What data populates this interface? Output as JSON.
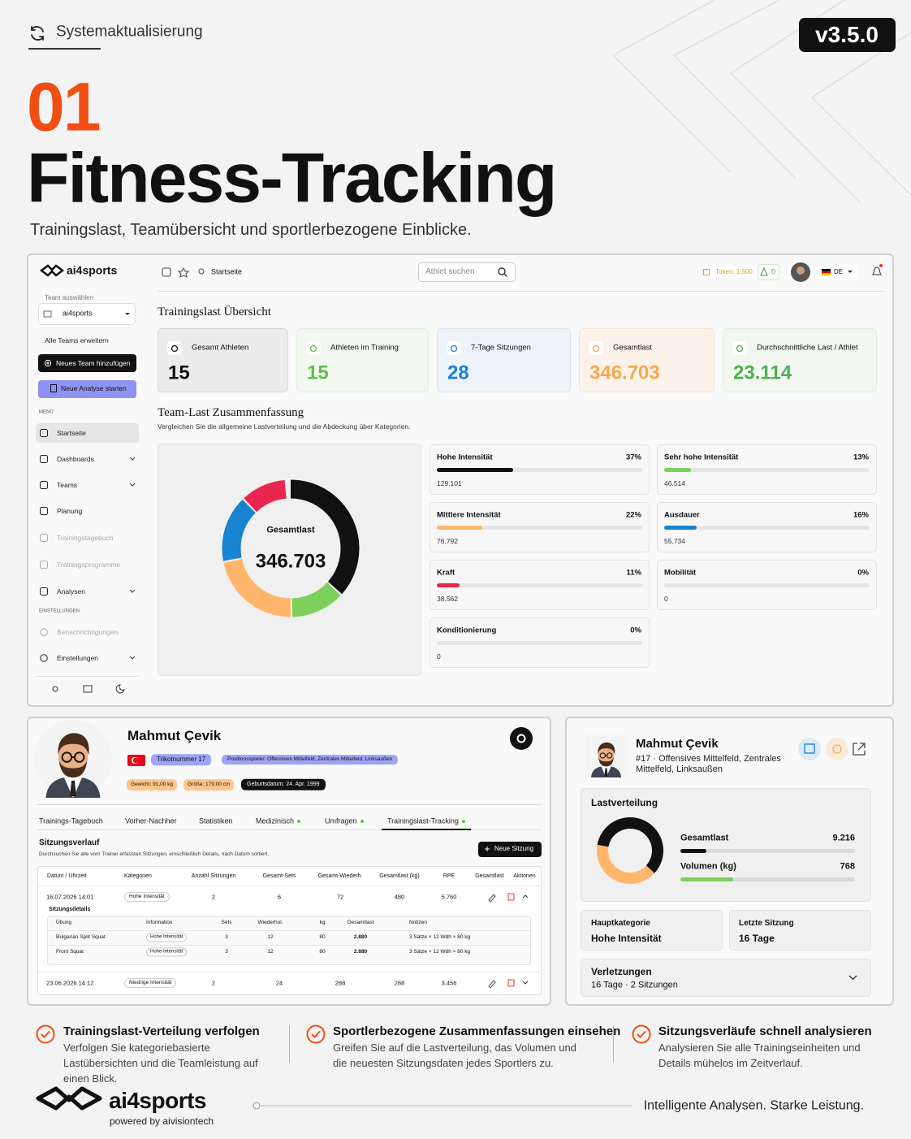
{
  "header": {
    "update_label": "Systemaktualisierung",
    "version": "v3.5.0",
    "number": "01",
    "title": "Fitness-Tracking",
    "subtitle": "Trainingslast, Teamübersicht und sportlerbezogene Einblicke."
  },
  "app": {
    "brand": "ai4sports",
    "sidebar": {
      "team_label": "Team auswählen",
      "team": "ai4sports",
      "expand": "Alle Teams erweitern",
      "add_team": "Neues Team hinzufügen",
      "new_analysis": "Neue Analyse starten",
      "menu_label": "MENÜ",
      "menu": [
        "Startseite",
        "Dashboards",
        "Teams",
        "Planung",
        "Trainingstagebuch",
        "Trainingsprogramme",
        "Analysen"
      ],
      "settings_label": "EINSTELLUNGEN",
      "settings": [
        "Benachrichtigungen",
        "Einstellungen"
      ]
    },
    "topbar": {
      "breadcrumb": "Startseite",
      "search": "Athlet suchen",
      "tokens": "Token: 1.500",
      "alerts": "0",
      "language": "DE"
    },
    "overview_title": "Trainingslast Übersicht",
    "stats": [
      {
        "label": "Gesamt Athleten",
        "value": "15"
      },
      {
        "label": "Athleten im Training",
        "value": "15"
      },
      {
        "label": "7-Tage Sitzungen",
        "value": "28"
      },
      {
        "label": "Gesamtlast",
        "value": "346.703"
      },
      {
        "label": "Durchschnittliche Last / Athlet",
        "value": "23.114"
      }
    ],
    "summary": {
      "title": "Team-Last Zusammenfassung",
      "description": "Vergleichen Sie die allgemeine Lastverteilung und die Abdeckung über Kategorien.",
      "donut_label": "Gesamtlast",
      "donut_value": "346.703",
      "categories": [
        {
          "name": "Hohe Intensität",
          "share": {
            "value": 37,
            "label": "37%"
          },
          "load": "129.101",
          "color": "#111111"
        },
        {
          "name": "Sehr hohe Intensität",
          "share": {
            "value": 13,
            "label": "13%"
          },
          "load": "46.514",
          "color": "#7dd05c"
        },
        {
          "name": "Mittlere Intensität",
          "share": {
            "value": 22,
            "label": "22%"
          },
          "load": "76.792",
          "color": "#ffb66b"
        },
        {
          "name": "Ausdauer",
          "share": {
            "value": 16,
            "label": "16%"
          },
          "load": "55.734",
          "color": "#1883d0"
        },
        {
          "name": "Kraft",
          "share": {
            "value": 11,
            "label": "11%"
          },
          "load": "38.562",
          "color": "#e8264f"
        },
        {
          "name": "Mobilität",
          "share": {
            "value": 0,
            "label": "0%"
          },
          "load": "0",
          "color": "#cccccc"
        },
        {
          "name": "Konditionierung",
          "share": {
            "value": 0,
            "label": "0%"
          },
          "load": "0",
          "color": "#cccccc"
        }
      ]
    }
  },
  "profile": {
    "name": "Mahmut Çevik",
    "jersey": "Trikotnummer 17",
    "position": "Positionsspieler: Offensives Mittelfeld, Zentrales Mittelfeld, Linksaußen",
    "weight": "Gewicht: 91,00 kg",
    "height": "Größe: 179,00 cm",
    "birth": "Geburtsdatum: 24. Apr. 1999",
    "tabs": [
      "Trainings-Tagebuch",
      "Vorher-Nachher",
      "Statistiken",
      "Medizinisch",
      "Umfragen",
      "Trainingslast-Tracking"
    ],
    "section_title": "Sitzungsverlauf",
    "section_description": "Durchsuchen Sie alle vom Trainer erfassten Sitzungen, einschließlich Details, nach Datum sortiert.",
    "new_session": "Neue Sitzung",
    "table": {
      "columns": [
        "Datum / Uhrzeit",
        "Kategorien",
        "Anzahl Sitzungen",
        "Gesamt-Sets",
        "Gesamt-Wiederh.",
        "Gesamtlast (kg)",
        "RPE",
        "Gesamtlast",
        "Aktionen"
      ],
      "rows": [
        [
          "16.07.2026 14:01",
          "Hohe Intensität",
          "2",
          "6",
          "72",
          "480",
          "5.760"
        ],
        [
          "23.06.2026 14:12",
          "Niedrige Intensität",
          "2",
          "24",
          "288",
          "288",
          "3.456"
        ]
      ]
    },
    "details": {
      "title": "Sitzungsdetails",
      "columns": [
        "Übung",
        "Information",
        "Sets",
        "Wiederhol.",
        "kg",
        "Gesamtlast",
        "Notizen"
      ],
      "rows": [
        [
          "Bulgarian Split Squat",
          "Hohe Intensität",
          "3",
          "12",
          "80",
          "2.880",
          "3 Sätze × 12 Wdh × 80 kg"
        ],
        [
          "Front Squat",
          "Hohe Intensität",
          "3",
          "12",
          "80",
          "2.880",
          "3 Sätze × 12 Wdh × 80 kg"
        ]
      ]
    }
  },
  "athlete_card": {
    "name": "Mahmut Çevik",
    "subtitle": "#17 · Offensives Mittelfeld, Zentrales Mittelfeld, Linksaußen",
    "distribution_title": "Lastverteilung",
    "metrics": [
      {
        "label": "Gesamtlast",
        "value": "9.216"
      },
      {
        "label": "Volumen (kg)",
        "value": "768"
      }
    ],
    "main_category": {
      "label": "Hauptkategorie",
      "value": "Hohe Intensität"
    },
    "last_session": {
      "label": "Letzte Sitzung",
      "value": "16 Tage"
    },
    "injuries": {
      "label": "Verletzungen",
      "value": "16 Tage · 2 Sitzungen"
    }
  },
  "features": [
    {
      "title": "Trainingslast-Verteilung verfolgen",
      "text": "Verfolgen Sie kategoriebasierte Lastübersichten und die Teamleistung auf einen Blick."
    },
    {
      "title": "Sportlerbezogene Zusammenfassungen einsehen",
      "text": "Greifen Sie auf die Lastverteilung, das Volumen und die neuesten Sitzungsdaten jedes Sportlers zu."
    },
    {
      "title": "Sitzungsverläufe schnell analysieren",
      "text": "Analysieren Sie alle Trainingseinheiten und Details mühelos im Zeitverlauf."
    }
  ],
  "footer": {
    "brand": "ai4sports",
    "powered": "powered by aivisiontech",
    "tagline": "Intelligente Analysen. Starke Leistung."
  }
}
